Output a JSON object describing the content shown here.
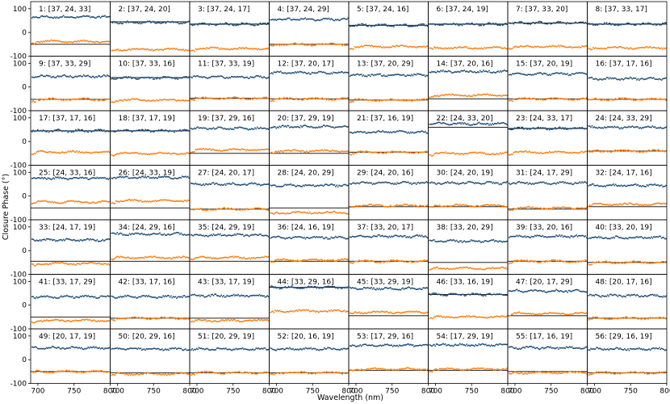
{
  "chart_data": {
    "type": "scatter",
    "layout": "small multiples grid, 7 rows x 8 columns, shared axes",
    "xlabel": "Wavelength (nm)",
    "ylabel": "Closure Phase (°)",
    "xlim": [
      690,
      800
    ],
    "ylim": [
      -100,
      130
    ],
    "xticks": [
      700,
      750,
      800
    ],
    "yticks": [
      -100,
      0,
      100
    ],
    "colors": {
      "series_a": "#1f4e79",
      "series_b": "#ff7f0e",
      "reference_line": "#000000"
    },
    "panels": [
      {
        "title": "1: [37, 24, 33]",
        "a": 65,
        "b": -38,
        "ref": -50
      },
      {
        "title": "2: [37, 24, 20]",
        "a": 42,
        "b": -72,
        "ref": 45
      },
      {
        "title": "3: [37, 24, 17]",
        "a": 35,
        "b": -68,
        "ref": 35
      },
      {
        "title": "4: [37, 24, 29]",
        "a": 55,
        "b": -50,
        "ref": -50
      },
      {
        "title": "5: [37, 24, 16]",
        "a": 30,
        "b": -60,
        "ref": 30
      },
      {
        "title": "6: [37, 24, 19]",
        "a": 35,
        "b": -65,
        "ref": 35
      },
      {
        "title": "7: [37, 33, 20]",
        "a": 40,
        "b": -60,
        "ref": 40
      },
      {
        "title": "8: [37, 33, 17]",
        "a": 35,
        "b": -65,
        "ref": 35
      },
      {
        "title": "9: [37, 33, 29]",
        "a": 45,
        "b": -52,
        "ref": -52
      },
      {
        "title": "10: [37, 33, 16]",
        "a": 38,
        "b": -55,
        "ref": 40
      },
      {
        "title": "11: [37, 33, 19]",
        "a": 42,
        "b": -48,
        "ref": -48
      },
      {
        "title": "12: [37, 20, 17]",
        "a": 60,
        "b": -50,
        "ref": -50
      },
      {
        "title": "13: [37, 20, 29]",
        "a": 50,
        "b": -55,
        "ref": -55
      },
      {
        "title": "14: [37, 20, 16]",
        "a": 65,
        "b": -35,
        "ref": -50
      },
      {
        "title": "15: [37, 20, 19]",
        "a": 55,
        "b": -50,
        "ref": -50
      },
      {
        "title": "16: [37, 17, 16]",
        "a": 35,
        "b": -52,
        "ref": -52
      },
      {
        "title": "17: [37, 17, 16]",
        "a": 45,
        "b": -45,
        "ref": 45
      },
      {
        "title": "18: [37, 17, 19]",
        "a": 45,
        "b": -50,
        "ref": 45
      },
      {
        "title": "19: [37, 29, 16]",
        "a": 55,
        "b": -35,
        "ref": -50
      },
      {
        "title": "20: [37, 29, 19]",
        "a": 62,
        "b": -40,
        "ref": -50
      },
      {
        "title": "21: [37, 16, 19]",
        "a": 40,
        "b": -45,
        "ref": -45
      },
      {
        "title": "22: [24, 33, 20]",
        "a": 75,
        "b": -50,
        "ref": 60
      },
      {
        "title": "23: [24, 33, 17]",
        "a": 55,
        "b": -45,
        "ref": 55
      },
      {
        "title": "24: [24, 33, 29]",
        "a": 60,
        "b": -40,
        "ref": -40
      },
      {
        "title": "25: [24, 33, 16]",
        "a": 75,
        "b": -25,
        "ref": -50
      },
      {
        "title": "26: [24, 33, 19]",
        "a": 78,
        "b": -20,
        "ref": -50
      },
      {
        "title": "27: [24, 20, 17]",
        "a": 50,
        "b": -55,
        "ref": -55
      },
      {
        "title": "28: [24, 20, 29]",
        "a": 45,
        "b": -70,
        "ref": -50
      },
      {
        "title": "29: [24, 20, 16]",
        "a": 55,
        "b": -40,
        "ref": -45
      },
      {
        "title": "30: [24, 20, 19]",
        "a": 55,
        "b": -40,
        "ref": -45
      },
      {
        "title": "31: [24, 17, 29]",
        "a": 55,
        "b": -50,
        "ref": -55
      },
      {
        "title": "32: [24, 17, 16]",
        "a": 45,
        "b": -35,
        "ref": -45
      },
      {
        "title": "33: [24, 17, 19]",
        "a": 45,
        "b": -55,
        "ref": -45
      },
      {
        "title": "34: [24, 29, 16]",
        "a": 70,
        "b": -30,
        "ref": -45
      },
      {
        "title": "35: [24, 29, 19]",
        "a": 65,
        "b": -30,
        "ref": -45
      },
      {
        "title": "36: [24, 16, 19]",
        "a": 55,
        "b": -40,
        "ref": -45
      },
      {
        "title": "37: [33, 20, 17]",
        "a": 60,
        "b": -45,
        "ref": -45
      },
      {
        "title": "38: [33, 20, 29]",
        "a": 40,
        "b": -75,
        "ref": -50
      },
      {
        "title": "39: [33, 20, 16]",
        "a": 60,
        "b": -45,
        "ref": -45
      },
      {
        "title": "40: [33, 20, 19]",
        "a": 55,
        "b": -50,
        "ref": -50
      },
      {
        "title": "41: [33, 17, 29]",
        "a": 35,
        "b": -65,
        "ref": -50
      },
      {
        "title": "42: [33, 17, 16]",
        "a": 35,
        "b": -55,
        "ref": -55
      },
      {
        "title": "43: [33, 17, 19]",
        "a": 40,
        "b": -65,
        "ref": -55
      },
      {
        "title": "44: [33, 29, 16]",
        "a": 75,
        "b": -25,
        "ref": 75
      },
      {
        "title": "45: [33, 29, 19]",
        "a": 70,
        "b": -30,
        "ref": -45
      },
      {
        "title": "46: [33, 16, 19]",
        "a": 45,
        "b": -50,
        "ref": 45
      },
      {
        "title": "47: [20, 17, 29]",
        "a": 60,
        "b": -35,
        "ref": -45
      },
      {
        "title": "48: [20, 17, 16]",
        "a": 40,
        "b": -55,
        "ref": -55
      },
      {
        "title": "49: [20, 17, 19]",
        "a": 50,
        "b": -50,
        "ref": -50
      },
      {
        "title": "50: [20, 29, 16]",
        "a": 45,
        "b": -60,
        "ref": -55
      },
      {
        "title": "51: [20, 29, 19]",
        "a": 45,
        "b": -55,
        "ref": -55
      },
      {
        "title": "52: [20, 16, 19]",
        "a": 45,
        "b": -55,
        "ref": -55
      },
      {
        "title": "53: [17, 29, 16]",
        "a": 60,
        "b": -40,
        "ref": -45
      },
      {
        "title": "54: [17, 29, 19]",
        "a": 62,
        "b": -40,
        "ref": -45
      },
      {
        "title": "55: [17, 16, 19]",
        "a": 50,
        "b": -55,
        "ref": -50
      },
      {
        "title": "56: [29, 16, 19]",
        "a": 45,
        "b": -55,
        "ref": -55
      }
    ]
  }
}
